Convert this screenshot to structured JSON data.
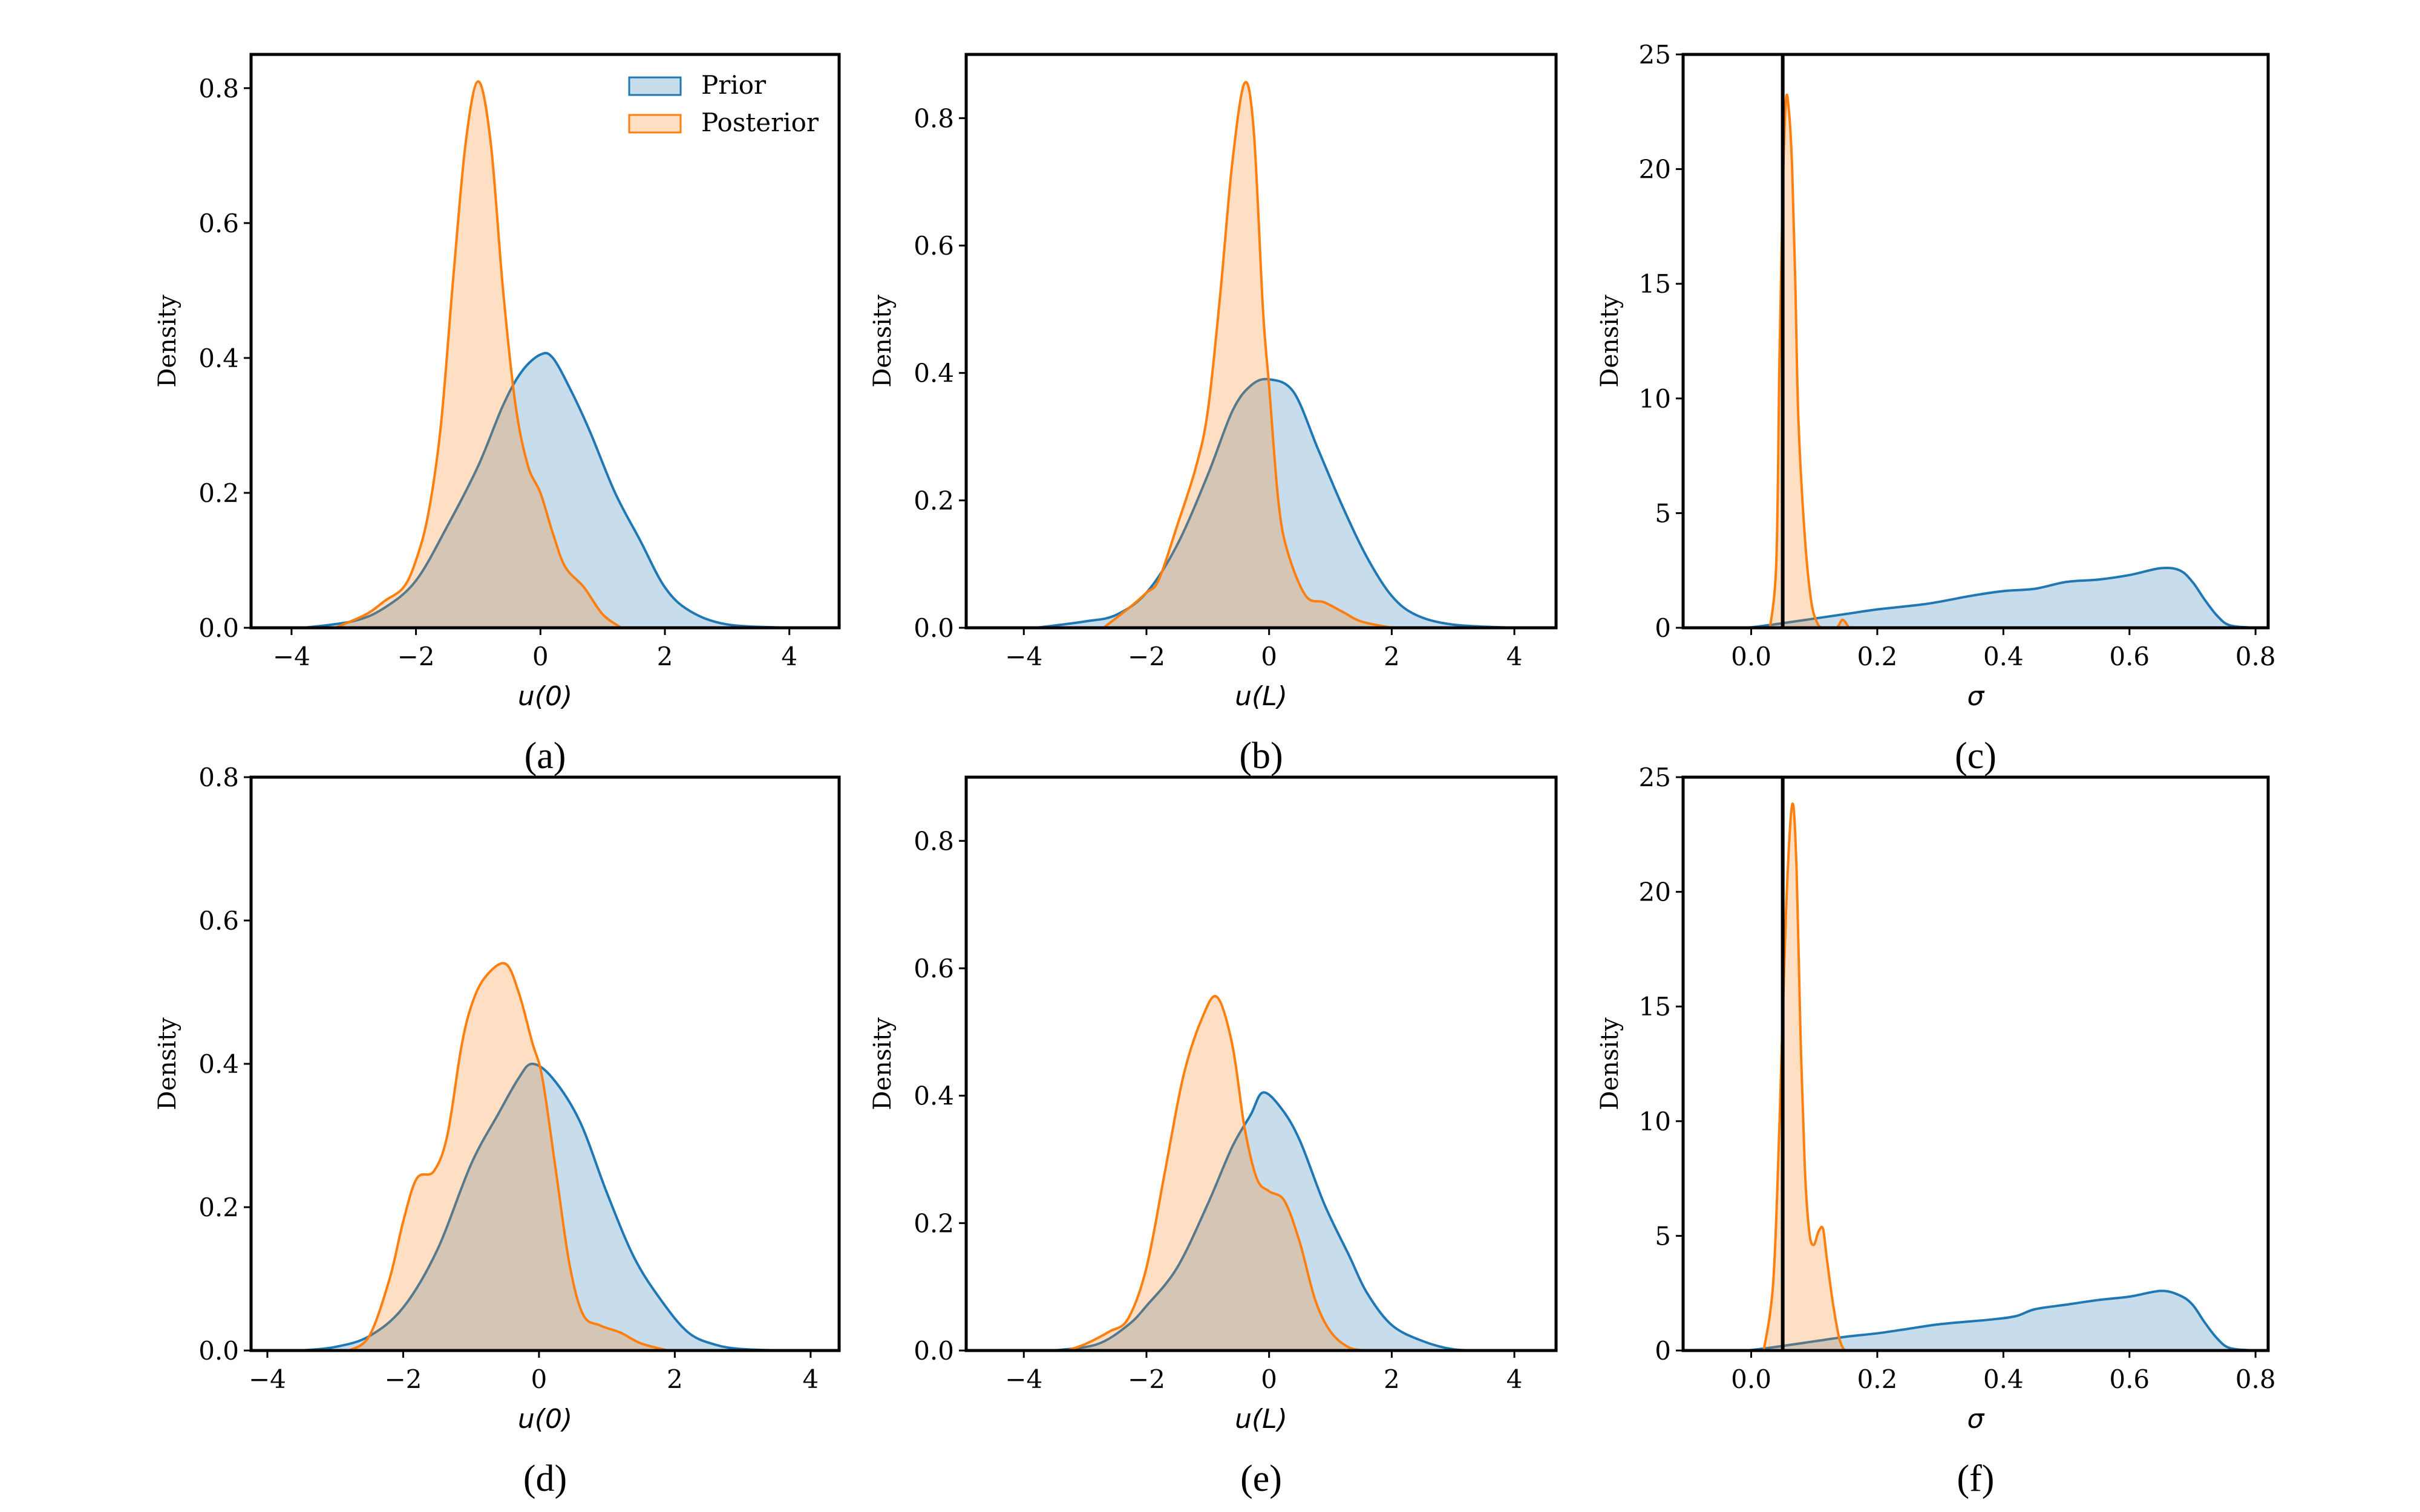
{
  "colors": {
    "prior": "#1f77b4",
    "posterior": "#ff7f0e",
    "reference_line": "#000000"
  },
  "legend": {
    "placement": "top-right",
    "panel": 0,
    "entries": [
      "Prior",
      "Posterior"
    ]
  },
  "chart_data": [
    {
      "type": "area",
      "panel_label": "(a)",
      "xlabel": "u(0)",
      "ylabel": "Density",
      "xlim": [
        -4.65,
        4.8
      ],
      "ylim": [
        0,
        0.85
      ],
      "xticks": [
        -4,
        -2,
        0,
        2,
        4
      ],
      "xtick_labels": [
        "−4",
        "−2",
        "0",
        "2",
        "4"
      ],
      "yticks": [
        0,
        0.2,
        0.4,
        0.6,
        0.8
      ],
      "ytick_labels": [
        "0.0",
        "0.2",
        "0.4",
        "0.6",
        "0.8"
      ],
      "series": [
        {
          "name": "Prior",
          "x": [
            -3.8,
            -3,
            -2.5,
            -2,
            -1.5,
            -1,
            -0.6,
            -0.3,
            0,
            0.2,
            0.5,
            0.8,
            1.2,
            1.6,
            2,
            2.4,
            3,
            4
          ],
          "y": [
            0,
            0.01,
            0.03,
            0.07,
            0.15,
            0.24,
            0.33,
            0.38,
            0.405,
            0.4,
            0.35,
            0.29,
            0.2,
            0.13,
            0.06,
            0.025,
            0.005,
            0
          ]
        },
        {
          "name": "Posterior",
          "x": [
            -3.3,
            -2.8,
            -2.5,
            -2.2,
            -2,
            -1.8,
            -1.6,
            -1.4,
            -1.2,
            -1.0,
            -0.8,
            -0.6,
            -0.4,
            -0.2,
            0,
            0.2,
            0.4,
            0.7,
            1.0,
            1.3
          ],
          "y": [
            0,
            0.02,
            0.04,
            0.06,
            0.1,
            0.17,
            0.3,
            0.52,
            0.72,
            0.81,
            0.72,
            0.5,
            0.33,
            0.24,
            0.2,
            0.14,
            0.09,
            0.06,
            0.02,
            0
          ]
        }
      ]
    },
    {
      "type": "area",
      "panel_label": "(b)",
      "xlabel": "u(L)",
      "ylabel": "Density",
      "xlim": [
        -4.94,
        4.68
      ],
      "ylim": [
        0,
        0.9
      ],
      "xticks": [
        -4,
        -2,
        0,
        2,
        4
      ],
      "xtick_labels": [
        "−4",
        "−2",
        "0",
        "2",
        "4"
      ],
      "yticks": [
        0,
        0.2,
        0.4,
        0.6,
        0.8
      ],
      "ytick_labels": [
        "0.0",
        "0.2",
        "0.4",
        "0.6",
        "0.8"
      ],
      "series": [
        {
          "name": "Prior",
          "x": [
            -3.8,
            -3,
            -2.5,
            -2,
            -1.5,
            -1,
            -0.6,
            -0.3,
            0,
            0.4,
            0.8,
            1.2,
            1.6,
            2,
            2.4,
            3,
            4
          ],
          "y": [
            0,
            0.01,
            0.02,
            0.055,
            0.13,
            0.24,
            0.34,
            0.38,
            0.39,
            0.37,
            0.28,
            0.19,
            0.11,
            0.05,
            0.02,
            0.005,
            0
          ]
        },
        {
          "name": "Posterior",
          "x": [
            -2.7,
            -2.3,
            -2,
            -1.8,
            -1.5,
            -1.2,
            -1.0,
            -0.8,
            -0.6,
            -0.4,
            -0.25,
            -0.1,
            0,
            0.15,
            0.3,
            0.6,
            0.9,
            1.2,
            1.5,
            2
          ],
          "y": [
            0,
            0.03,
            0.055,
            0.075,
            0.16,
            0.25,
            0.34,
            0.52,
            0.73,
            0.855,
            0.78,
            0.5,
            0.38,
            0.2,
            0.12,
            0.05,
            0.04,
            0.025,
            0.01,
            0
          ]
        }
      ]
    },
    {
      "type": "area",
      "panel_label": "(c)",
      "xlabel": "σ",
      "ylabel": "Density",
      "xlim": [
        -0.108,
        0.82
      ],
      "ylim": [
        0,
        25
      ],
      "xticks": [
        0,
        0.2,
        0.4,
        0.6,
        0.8
      ],
      "xtick_labels": [
        "0.0",
        "0.2",
        "0.4",
        "0.6",
        "0.8"
      ],
      "yticks": [
        0,
        5,
        10,
        15,
        20,
        25
      ],
      "ytick_labels": [
        "0",
        "5",
        "10",
        "15",
        "20",
        "25"
      ],
      "vline_x": 0.05,
      "series": [
        {
          "name": "Prior",
          "x": [
            -0.02,
            0,
            0.05,
            0.1,
            0.15,
            0.2,
            0.28,
            0.35,
            0.4,
            0.45,
            0.5,
            0.55,
            0.6,
            0.65,
            0.68,
            0.7,
            0.72,
            0.74,
            0.76,
            0.8
          ],
          "y": [
            0,
            0.02,
            0.2,
            0.4,
            0.6,
            0.8,
            1.05,
            1.4,
            1.6,
            1.7,
            2.0,
            2.1,
            2.3,
            2.6,
            2.5,
            2.0,
            1.2,
            0.5,
            0.1,
            0
          ]
        },
        {
          "name": "Posterior",
          "x": [
            0.03,
            0.04,
            0.045,
            0.05,
            0.055,
            0.06,
            0.065,
            0.07,
            0.075,
            0.085,
            0.095,
            0.105,
            0.115,
            0.135,
            0.145,
            0.155
          ],
          "y": [
            0,
            3,
            12,
            19,
            23,
            22.5,
            20,
            15,
            9,
            4,
            1.2,
            0.2,
            0,
            0,
            0.35,
            0
          ]
        }
      ]
    },
    {
      "type": "area",
      "panel_label": "(d)",
      "xlabel": "u(0)",
      "ylabel": "Density",
      "xlim": [
        -4.24,
        4.42
      ],
      "ylim": [
        0,
        0.8
      ],
      "xticks": [
        -4,
        -2,
        0,
        2,
        4
      ],
      "xtick_labels": [
        "−4",
        "−2",
        "0",
        "2",
        "4"
      ],
      "yticks": [
        0,
        0.2,
        0.4,
        0.6,
        0.8
      ],
      "ytick_labels": [
        "0.0",
        "0.2",
        "0.4",
        "0.6",
        "0.8"
      ],
      "series": [
        {
          "name": "Prior",
          "x": [
            -3.5,
            -3,
            -2.5,
            -2,
            -1.5,
            -1,
            -0.6,
            -0.3,
            -0.1,
            0.2,
            0.6,
            1,
            1.4,
            1.8,
            2.2,
            2.6,
            3,
            3.6
          ],
          "y": [
            0,
            0.005,
            0.02,
            0.06,
            0.14,
            0.26,
            0.33,
            0.38,
            0.4,
            0.38,
            0.32,
            0.22,
            0.13,
            0.07,
            0.025,
            0.008,
            0.002,
            0
          ]
        },
        {
          "name": "Posterior",
          "x": [
            -2.8,
            -2.5,
            -2.2,
            -2,
            -1.8,
            -1.55,
            -1.35,
            -1.15,
            -1.0,
            -0.8,
            -0.5,
            -0.3,
            -0.1,
            0.05,
            0.25,
            0.45,
            0.65,
            0.9,
            1.2,
            1.5,
            1.9
          ],
          "y": [
            0,
            0.02,
            0.1,
            0.18,
            0.24,
            0.25,
            0.3,
            0.42,
            0.48,
            0.52,
            0.54,
            0.5,
            0.43,
            0.38,
            0.25,
            0.12,
            0.05,
            0.035,
            0.025,
            0.01,
            0
          ]
        }
      ]
    },
    {
      "type": "area",
      "panel_label": "(e)",
      "xlabel": "u(L)",
      "ylabel": "Density",
      "xlim": [
        -4.94,
        4.68
      ],
      "ylim": [
        0,
        0.9
      ],
      "xticks": [
        -4,
        -2,
        0,
        2,
        4
      ],
      "xtick_labels": [
        "−4",
        "−2",
        "0",
        "2",
        "4"
      ],
      "yticks": [
        0,
        0.2,
        0.4,
        0.6,
        0.8
      ],
      "ytick_labels": [
        "0.0",
        "0.2",
        "0.4",
        "0.6",
        "0.8"
      ],
      "series": [
        {
          "name": "Prior",
          "x": [
            -3.5,
            -2.8,
            -2.3,
            -2,
            -1.5,
            -1,
            -0.6,
            -0.3,
            -0.1,
            0.2,
            0.5,
            0.9,
            1.3,
            1.6,
            2,
            2.5,
            3,
            3.5
          ],
          "y": [
            0,
            0.01,
            0.04,
            0.07,
            0.13,
            0.23,
            0.32,
            0.37,
            0.405,
            0.38,
            0.33,
            0.23,
            0.15,
            0.09,
            0.04,
            0.015,
            0.002,
            0
          ]
        },
        {
          "name": "Posterior",
          "x": [
            -3.3,
            -3,
            -2.6,
            -2.3,
            -2,
            -1.7,
            -1.4,
            -1.1,
            -0.85,
            -0.6,
            -0.4,
            -0.2,
            0,
            0.25,
            0.5,
            0.75,
            1.0,
            1.3,
            1.6
          ],
          "y": [
            0,
            0.01,
            0.03,
            0.05,
            0.13,
            0.28,
            0.43,
            0.52,
            0.555,
            0.48,
            0.35,
            0.27,
            0.25,
            0.235,
            0.17,
            0.08,
            0.03,
            0.005,
            0
          ]
        }
      ]
    },
    {
      "type": "area",
      "panel_label": "(f)",
      "xlabel": "σ",
      "ylabel": "Density",
      "xlim": [
        -0.108,
        0.82
      ],
      "ylim": [
        0,
        25
      ],
      "xticks": [
        0,
        0.2,
        0.4,
        0.6,
        0.8
      ],
      "xtick_labels": [
        "0.0",
        "0.2",
        "0.4",
        "0.6",
        "0.8"
      ],
      "yticks": [
        0,
        5,
        10,
        15,
        20,
        25
      ],
      "ytick_labels": [
        "0",
        "5",
        "10",
        "15",
        "20",
        "25"
      ],
      "vline_x": 0.05,
      "series": [
        {
          "name": "Prior",
          "x": [
            -0.02,
            0,
            0.05,
            0.1,
            0.15,
            0.2,
            0.25,
            0.3,
            0.38,
            0.42,
            0.45,
            0.5,
            0.55,
            0.6,
            0.65,
            0.68,
            0.7,
            0.72,
            0.74,
            0.76,
            0.8
          ],
          "y": [
            0,
            0.02,
            0.2,
            0.4,
            0.6,
            0.75,
            0.95,
            1.15,
            1.35,
            1.5,
            1.8,
            2.0,
            2.2,
            2.35,
            2.6,
            2.4,
            2.0,
            1.2,
            0.5,
            0.1,
            0
          ]
        },
        {
          "name": "Posterior",
          "x": [
            0.02,
            0.035,
            0.045,
            0.055,
            0.065,
            0.072,
            0.078,
            0.085,
            0.092,
            0.099,
            0.107,
            0.114,
            0.12,
            0.13,
            0.14,
            0.148
          ],
          "y": [
            0,
            3,
            10,
            19,
            23.8,
            21,
            14,
            8,
            5.2,
            4.6,
            5.2,
            5.3,
            4,
            2,
            0.5,
            0
          ]
        }
      ]
    }
  ]
}
